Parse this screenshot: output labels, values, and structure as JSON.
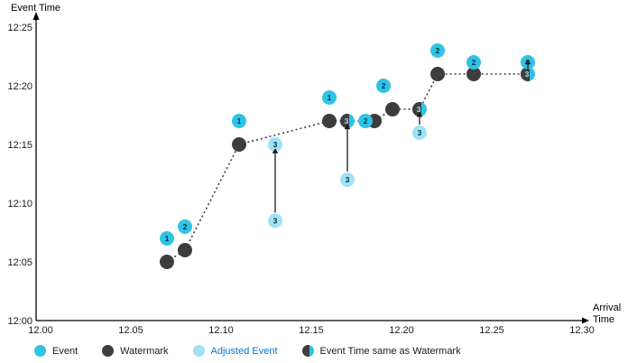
{
  "colors": {
    "event": "#2ec4e6",
    "watermark": "#3d3d3d",
    "adjusted": "#a0e1f5",
    "marker_text": "#00303e",
    "same_marker_text": "#a0e1f5",
    "arrow": "#1a1a1a",
    "axis": "#000000",
    "tick_text": "#1a1a1a",
    "adjusted_label": "#0078d4"
  },
  "chart_data": {
    "type": "scatter",
    "title": "",
    "xlabel": "Arrival Time",
    "xlabel_line1": "Arrival",
    "xlabel_line2": "Time",
    "ylabel": "Event Time",
    "x_ticks": [
      "12.00",
      "12.05",
      "12.10",
      "12.15",
      "12.20",
      "12.25",
      "12.30"
    ],
    "y_ticks": [
      "12:00",
      "12:05",
      "12:10",
      "12:15",
      "12:20",
      "12:25"
    ],
    "x_range": [
      12.0,
      12.3
    ],
    "y_range_minutes_after_12": [
      0,
      25
    ],
    "grid": false,
    "legend_position": "bottom",
    "legend": [
      {
        "kind": "event",
        "label": "Event"
      },
      {
        "kind": "watermark",
        "label": "Watermark"
      },
      {
        "kind": "adjusted",
        "label": "Adjusted Event"
      },
      {
        "kind": "same",
        "label": "Event Time same as Watermark"
      }
    ],
    "events": [
      {
        "label": "1",
        "arrival": 12.07,
        "time": "12:07",
        "minutes": 7
      },
      {
        "label": "2",
        "arrival": 12.08,
        "time": "12:08",
        "minutes": 8
      },
      {
        "label": "1",
        "arrival": 12.11,
        "time": "12:17",
        "minutes": 17
      },
      {
        "label": "1",
        "arrival": 12.16,
        "time": "12:19",
        "minutes": 19
      },
      {
        "label": "2",
        "arrival": 12.18,
        "time": "12:17",
        "minutes": 17
      },
      {
        "label": "2",
        "arrival": 12.19,
        "time": "12:20",
        "minutes": 20
      },
      {
        "label": "2",
        "arrival": 12.22,
        "time": "12:23",
        "minutes": 23
      },
      {
        "label": "2",
        "arrival": 12.24,
        "time": "12:22",
        "minutes": 22
      },
      {
        "label": "3",
        "arrival": 12.27,
        "time": "12:22",
        "minutes": 22
      }
    ],
    "watermarks": [
      {
        "arrival": 12.07,
        "time": "12:05",
        "minutes": 5
      },
      {
        "arrival": 12.08,
        "time": "12:06",
        "minutes": 6
      },
      {
        "arrival": 12.11,
        "time": "12:15",
        "minutes": 15
      },
      {
        "arrival": 12.16,
        "time": "12:17",
        "minutes": 17
      },
      {
        "arrival": 12.185,
        "time": "12:17",
        "minutes": 17
      },
      {
        "arrival": 12.195,
        "time": "12:18",
        "minutes": 18
      },
      {
        "arrival": 12.22,
        "time": "12:21",
        "minutes": 21
      },
      {
        "arrival": 12.24,
        "time": "12:21",
        "minutes": 21
      }
    ],
    "adjusted_events": [
      {
        "label": "3",
        "arrival": 12.13,
        "time": "12:15",
        "minutes": 15
      },
      {
        "label": "3",
        "arrival": 12.13,
        "time": "12:08",
        "minutes": 8.5
      },
      {
        "label": "3",
        "arrival": 12.17,
        "time": "12:12",
        "minutes": 12
      },
      {
        "label": "3",
        "arrival": 12.21,
        "time": "12:16",
        "minutes": 16
      }
    ],
    "same_as_watermark": [
      {
        "label": "3",
        "arrival": 12.17,
        "time": "12:17",
        "minutes": 17
      },
      {
        "label": "3",
        "arrival": 12.21,
        "time": "12:18",
        "minutes": 18
      },
      {
        "label": "3",
        "arrival": 12.27,
        "time": "12:21",
        "minutes": 21
      }
    ],
    "arrows": [
      {
        "x": 12.13,
        "from_minutes": 9.2,
        "to_minutes": 14.25
      },
      {
        "x": 12.17,
        "from_minutes": 12.7,
        "to_minutes": 16.3
      },
      {
        "x": 12.21,
        "from_minutes": 16.7,
        "to_minutes": 17.35
      },
      {
        "x": 12.27,
        "from_minutes": 21.25,
        "to_minutes": 21.85
      }
    ],
    "watermark_line": [
      [
        12.07,
        5
      ],
      [
        12.08,
        6
      ],
      [
        12.11,
        15
      ],
      [
        12.16,
        17
      ],
      [
        12.185,
        17
      ],
      [
        12.195,
        18
      ],
      [
        12.21,
        18
      ],
      [
        12.22,
        21
      ],
      [
        12.24,
        21
      ],
      [
        12.27,
        21
      ]
    ]
  }
}
